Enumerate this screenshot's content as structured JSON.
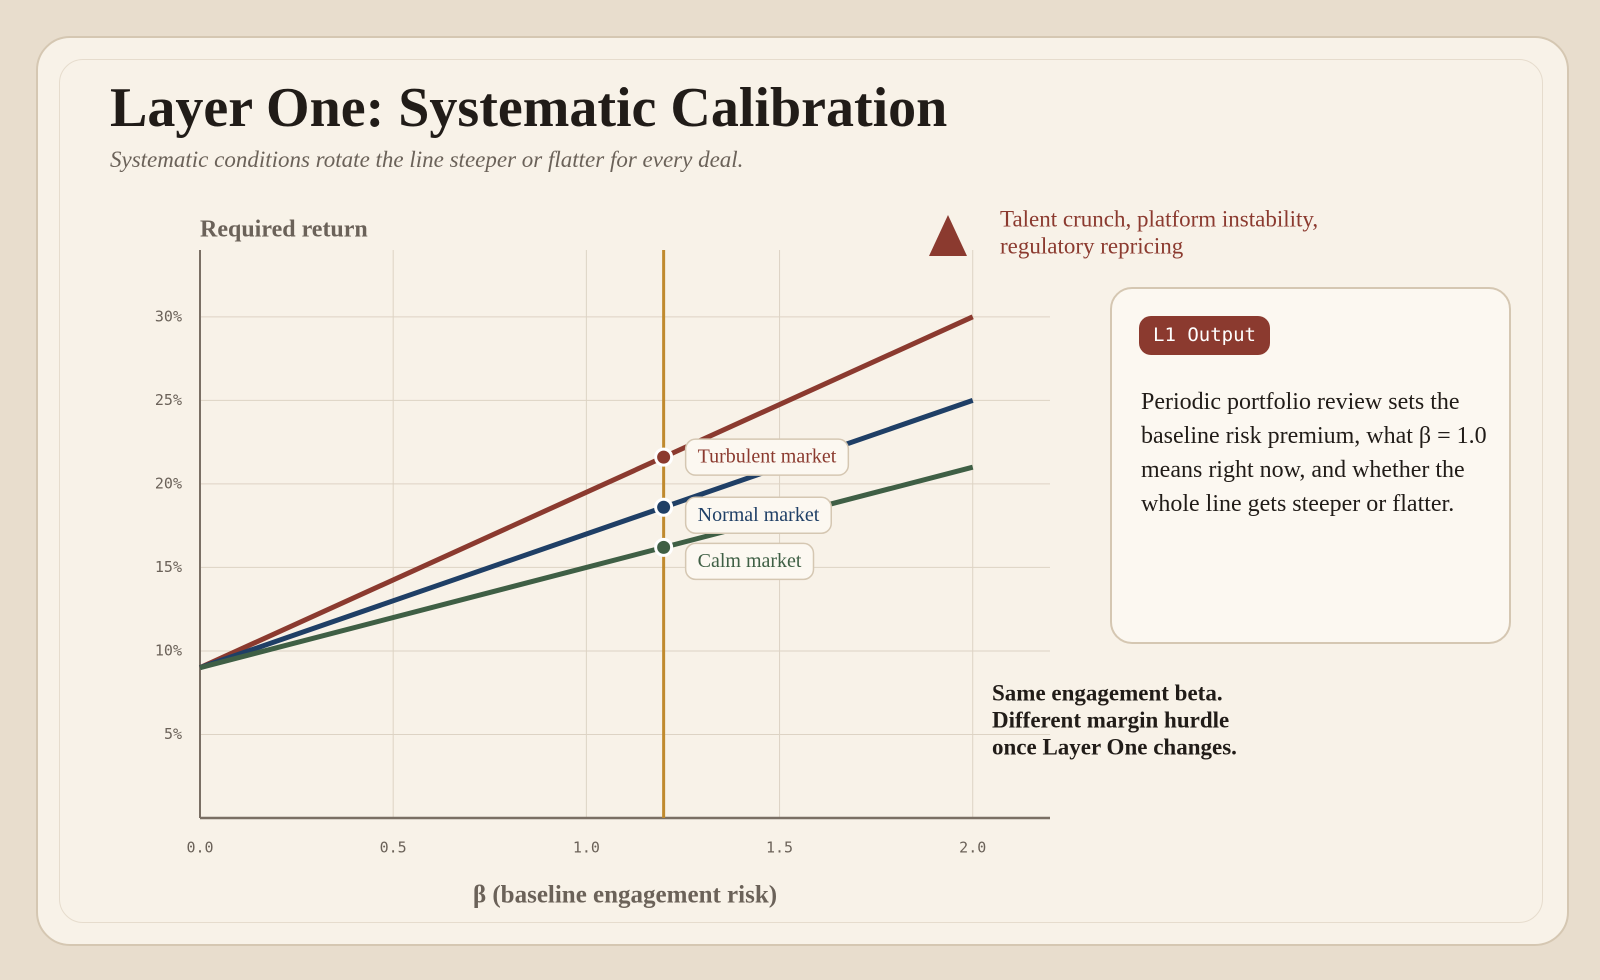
{
  "header": {
    "title": "Layer One: Systematic Calibration",
    "subtitle": "Systematic conditions rotate the line steeper or flatter for every deal."
  },
  "chart_data": {
    "type": "line",
    "y_label": "Required return",
    "x_label": "β (baseline engagement risk)",
    "xlim": [
      0,
      2.2
    ],
    "ylim": [
      0,
      34
    ],
    "xticks": [
      {
        "value": 0,
        "label": "0.0"
      },
      {
        "value": 0.5,
        "label": "0.5"
      },
      {
        "value": 1,
        "label": "1.0"
      },
      {
        "value": 1.5,
        "label": "1.5"
      },
      {
        "value": 2,
        "label": "2.0"
      }
    ],
    "yticks": [
      {
        "value": 5,
        "label": "5%"
      },
      {
        "value": 10,
        "label": "10%"
      },
      {
        "value": 15,
        "label": "15%"
      },
      {
        "value": 20,
        "label": "20%"
      },
      {
        "value": 25,
        "label": "25%"
      },
      {
        "value": 30,
        "label": "30%"
      }
    ],
    "grid": true,
    "highlight_x": 1.2,
    "highlight_color": "#c08a2e",
    "x": [
      0,
      1.2,
      2
    ],
    "series": [
      {
        "name": "Turbulent market",
        "color": "#8b3a2f",
        "values": [
          9,
          21.6,
          30
        ]
      },
      {
        "name": "Normal market",
        "color": "#1f3f66",
        "values": [
          9,
          18.6,
          25
        ]
      },
      {
        "name": "Calm market",
        "color": "#3f5f45",
        "values": [
          9,
          16.2,
          21
        ]
      }
    ],
    "annotations": {
      "shock": [
        "Talent crunch, platform instability,",
        "regulatory repricing"
      ],
      "callout": [
        "Same engagement beta.",
        "Different margin hurdle",
        "once Layer One changes."
      ]
    }
  },
  "card": {
    "badge": "L1 Output",
    "body": "Periodic portfolio review sets the baseline risk premium, what β = 1.0 means right now, and whether the whole line gets steeper or flatter."
  }
}
